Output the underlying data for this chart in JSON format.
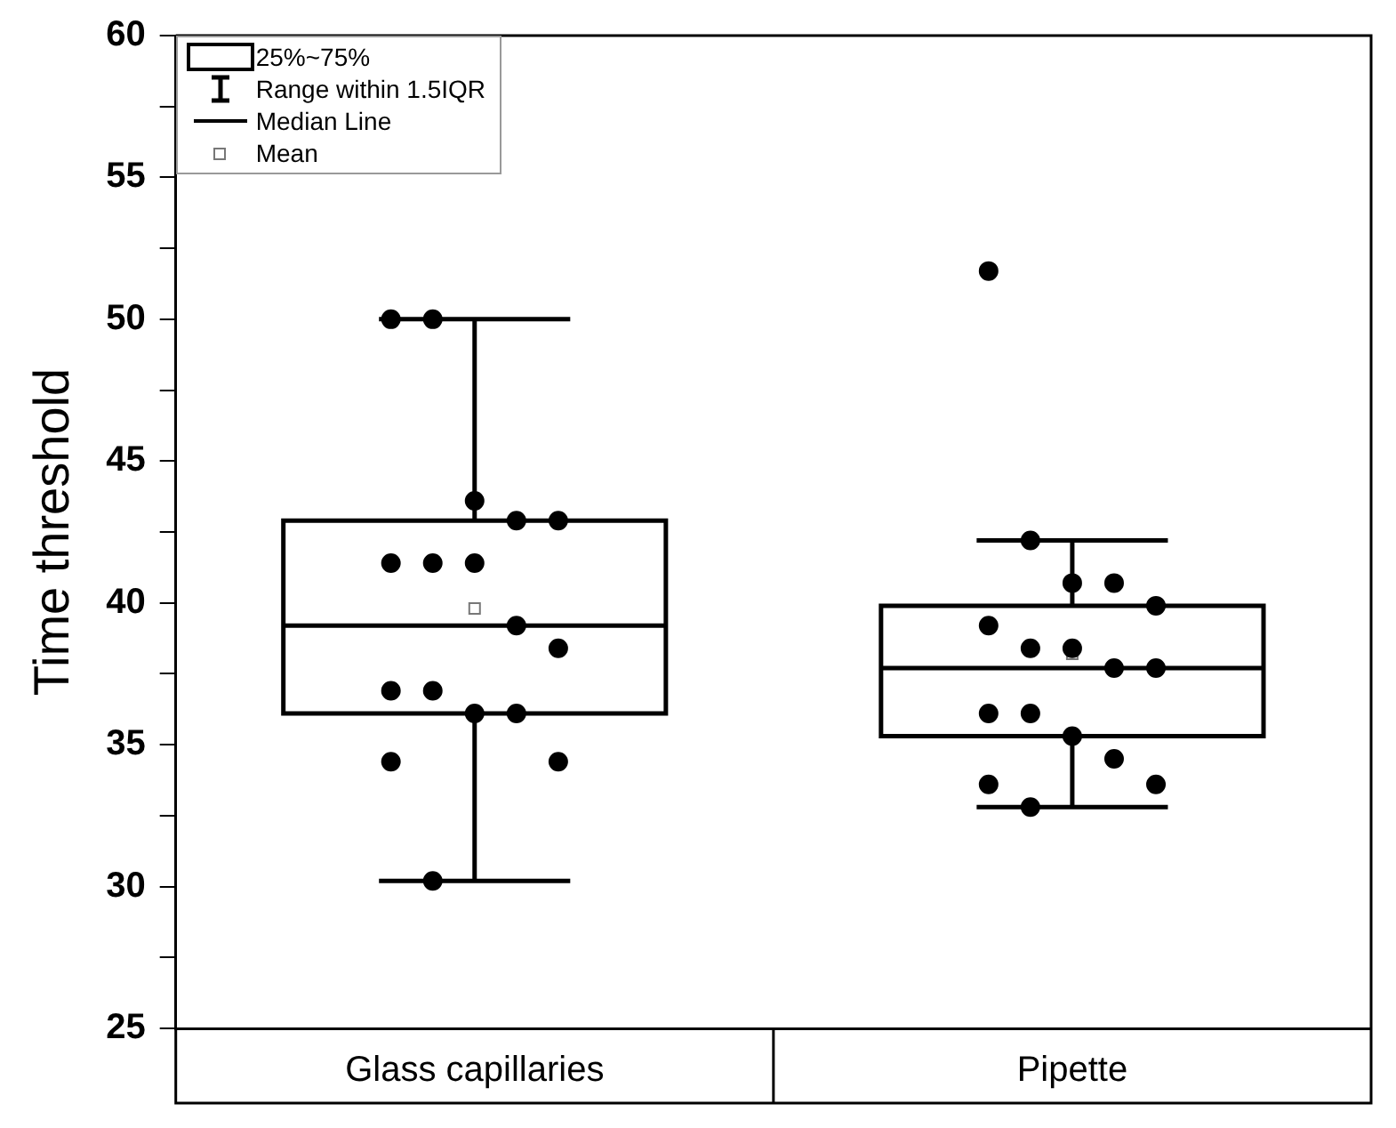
{
  "chart_data": {
    "type": "box",
    "ylabel": "Time threshold",
    "categories": [
      "Glass capillaries",
      "Pipette"
    ],
    "ylim": [
      25,
      60
    ],
    "yticks": [
      25,
      {
        "value": 27.5,
        "label": null
      },
      30,
      {
        "value": 32.5,
        "label": null
      },
      35,
      {
        "value": 37.5,
        "label": null
      },
      40,
      {
        "value": 42.5,
        "label": null
      },
      45,
      {
        "value": 47.5,
        "label": null
      },
      50,
      {
        "value": 52.5,
        "label": null
      },
      55,
      {
        "value": 57.5,
        "label": null
      },
      60
    ],
    "boxes": [
      {
        "low": 30.2,
        "q1": 36.1,
        "median": 39.2,
        "q3": 42.9,
        "high": 50,
        "mean": 39.8
      },
      {
        "low": 32.8,
        "q1": 35.3,
        "median": 37.7,
        "q3": 39.9,
        "high": 42.2,
        "mean": 38.2
      }
    ],
    "series": [
      {
        "type": "scatter",
        "color": "#000000",
        "x": [
          "Glass capillaries",
          "Glass capillaries",
          "Glass capillaries",
          "Glass capillaries",
          "Glass capillaries",
          "Glass capillaries",
          "Glass capillaries",
          "Glass capillaries",
          "Glass capillaries",
          "Glass capillaries",
          "Glass capillaries",
          "Glass capillaries",
          "Glass capillaries",
          "Glass capillaries",
          "Glass capillaries",
          "Glass capillaries",
          "Glass capillaries",
          "Pipette",
          "Pipette",
          "Pipette",
          "Pipette",
          "Pipette",
          "Pipette",
          "Pipette",
          "Pipette",
          "Pipette",
          "Pipette",
          "Pipette",
          "Pipette",
          "Pipette",
          "Pipette",
          "Pipette",
          "Pipette",
          "Pipette"
        ],
        "values": [
          50,
          50,
          43.6,
          42.9,
          42.9,
          41.4,
          41.4,
          41.4,
          39.2,
          38.4,
          36.9,
          36.9,
          36.1,
          36.1,
          34.4,
          34.4,
          30.2,
          51.7,
          42.2,
          40.7,
          40.7,
          39.9,
          39.2,
          38.4,
          38.4,
          37.7,
          37.7,
          36.1,
          36.1,
          35.3,
          34.5,
          33.6,
          33.6,
          32.8
        ]
      }
    ],
    "annotations": [
      "25%~75%",
      "Range within 1.5IQR",
      "Median Line",
      "Mean"
    ],
    "marker": "circle",
    "grid": false
  }
}
